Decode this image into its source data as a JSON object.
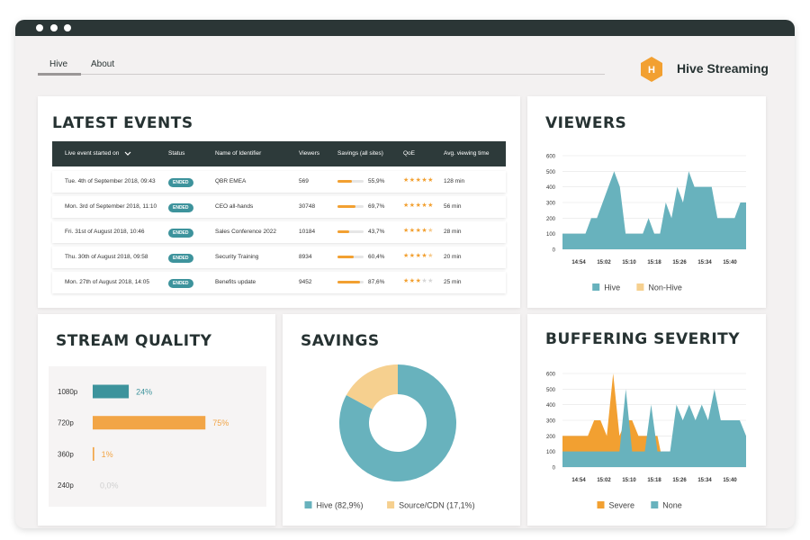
{
  "header": {
    "tabs": [
      "Hive",
      "About"
    ],
    "logo_letter": "H",
    "brand": "Hive Streaming"
  },
  "latest_events": {
    "title": "LATEST EVENTS",
    "columns": [
      "Live event started on",
      "Status",
      "Name of Identifier",
      "Viewers",
      "Savings (all sites)",
      "QoE",
      "Avg. viewing time"
    ],
    "rows": [
      {
        "date": "Tue. 4th of September 2018, 09:43",
        "status": "ENDED",
        "name": "QBR EMEA",
        "viewers": 569,
        "savings": {
          "value": 55.9,
          "label": "55,9%"
        },
        "qoe": 5,
        "time": "128 min"
      },
      {
        "date": "Mon. 3rd of September 2018, 11:10",
        "status": "ENDED",
        "name": "CEO all-hands",
        "viewers": 30748,
        "savings": {
          "value": 69.7,
          "label": "69,7%"
        },
        "qoe": 5,
        "time": "56 min"
      },
      {
        "date": "Fri. 31st of August 2018, 10:46",
        "status": "ENDED",
        "name": "Sales Conference 2022",
        "viewers": 10184,
        "savings": {
          "value": 43.7,
          "label": "43,7%"
        },
        "qoe": 4.5,
        "time": "28 min"
      },
      {
        "date": "Thu. 30th of August 2018, 09:58",
        "status": "ENDED",
        "name": "Security Training",
        "viewers": 8934,
        "savings": {
          "value": 60.4,
          "label": "60,4%"
        },
        "qoe": 4.5,
        "time": "20 min"
      },
      {
        "date": "Mon. 27th of August 2018, 14:05",
        "status": "ENDED",
        "name": "Benefits update",
        "viewers": 9452,
        "savings": {
          "value": 87.6,
          "label": "87,6%"
        },
        "qoe": 3,
        "time": "25 min"
      }
    ]
  },
  "chart_data": [
    {
      "type": "area",
      "title": "VIEWERS",
      "xticks": [
        "14:54",
        "15:02",
        "15:10",
        "15:18",
        "15:26",
        "15:34",
        "15:40"
      ],
      "ylim": [
        0,
        600
      ],
      "yticks": [
        0,
        100,
        200,
        300,
        400,
        500,
        600
      ],
      "grid": true,
      "series": [
        {
          "name": "Hive",
          "color": "#68b2bd",
          "values": [
            100,
            100,
            100,
            100,
            100,
            200,
            200,
            300,
            400,
            500,
            400,
            100,
            100,
            100,
            100,
            200,
            100,
            100,
            300,
            200,
            400,
            300,
            500,
            400,
            400,
            400,
            400,
            200,
            200,
            200,
            200,
            300,
            300
          ]
        },
        {
          "name": "Non-Hive",
          "color": "#f6d08f",
          "values": [
            0,
            0,
            0,
            0,
            0,
            0,
            0,
            0,
            0,
            0,
            0,
            0,
            0,
            0,
            0,
            0,
            0,
            0,
            0,
            0,
            0,
            0,
            0,
            0,
            0,
            0,
            0,
            0,
            0,
            0,
            0,
            0,
            0
          ]
        }
      ]
    },
    {
      "type": "bar",
      "title": "STREAM QUALITY",
      "categories": [
        "1080p",
        "720p",
        "360p",
        "240p"
      ],
      "values": [
        24,
        75,
        1,
        0
      ],
      "value_labels": [
        "24%",
        "75%",
        "1%",
        "0,0%"
      ],
      "colors": [
        "#3d939c",
        "#f2a546",
        "#f2a546",
        "#cfcfcf"
      ],
      "xlim": [
        0,
        100
      ]
    },
    {
      "type": "donut",
      "title": "SAVINGS",
      "categories": [
        "Hive (82,9%)",
        "Source/CDN (17,1%)"
      ],
      "values": [
        82.9,
        17.1
      ],
      "colors": [
        "#68b2bd",
        "#f6d08f"
      ]
    },
    {
      "type": "area",
      "title": "BUFFERING SEVERITY",
      "xticks": [
        "14:54",
        "15:02",
        "15:10",
        "15:18",
        "15:26",
        "15:34",
        "15:40"
      ],
      "ylim": [
        0,
        600
      ],
      "yticks": [
        0,
        100,
        200,
        300,
        400,
        500,
        600
      ],
      "grid": true,
      "series": [
        {
          "name": "Severe",
          "color": "#f2a031",
          "values": [
            200,
            200,
            200,
            200,
            200,
            300,
            300,
            200,
            600,
            200,
            300,
            300,
            200,
            200,
            200,
            200,
            0,
            0,
            0,
            0,
            0,
            0,
            0,
            0,
            0,
            0,
            0,
            0,
            0,
            0
          ]
        },
        {
          "name": "None",
          "color": "#68b2bd",
          "values": [
            100,
            100,
            100,
            100,
            100,
            100,
            100,
            100,
            100,
            100,
            500,
            100,
            100,
            100,
            400,
            100,
            100,
            100,
            400,
            300,
            400,
            300,
            400,
            300,
            500,
            300,
            300,
            300,
            300,
            200
          ]
        }
      ]
    }
  ]
}
